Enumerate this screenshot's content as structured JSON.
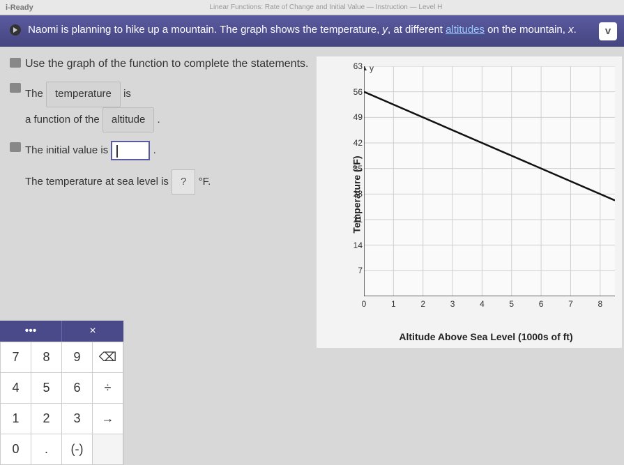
{
  "top": {
    "brand": "i-Ready",
    "crumbs": "Linear Functions: Rate of Change and Initial Value — Instruction — Level H"
  },
  "header": {
    "text_before": "Naomi is planning to hike up a mountain. The graph shows the temperature, ",
    "var_y": "y",
    "text_mid": ", at different ",
    "link": "altitudes",
    "text_after": " on the mountain, ",
    "var_x": "x",
    "period": "."
  },
  "instruction": "Use the graph of the function to complete the statements.",
  "stmt1": {
    "pre": "The ",
    "pill1": "temperature",
    "mid": " is",
    "line2_pre": "a function of the ",
    "pill2": "altitude",
    "line2_post": " ."
  },
  "stmt2": {
    "pre": "The initial value is ",
    "post": "."
  },
  "stmt3": {
    "pre": "The temperature at sea level is ",
    "pill": "?",
    "unit": " °F."
  },
  "keypad": {
    "tab1": "•••",
    "tab2": "×",
    "rows": [
      [
        "7",
        "8",
        "9",
        "⌫"
      ],
      [
        "4",
        "5",
        "6",
        "÷"
      ],
      [
        "1",
        "2",
        "3",
        "→"
      ],
      [
        "0",
        ".",
        "(-)",
        ""
      ]
    ]
  },
  "chart": {
    "type": "line",
    "y_label": "Temperature (°F)",
    "x_label": "Altitude Above Sea Level (1000s of ft)",
    "y_ticks": [
      0,
      7,
      14,
      21,
      28,
      35,
      42,
      49,
      56,
      63
    ],
    "x_ticks": [
      0,
      1,
      2,
      3,
      4,
      5,
      6,
      7,
      8
    ],
    "xlim": [
      0,
      8.5
    ],
    "ylim": [
      0,
      63
    ],
    "grid_color": "#cfcfcf",
    "axis_color": "#333333",
    "bg_color": "#fafafa",
    "panel_bg": "#f3f3f3",
    "line_color": "#111111",
    "line_width": 2.5,
    "line_p1": {
      "x": 0,
      "y": 56
    },
    "line_p2": {
      "x": 8.5,
      "y": 26.25
    },
    "y_var_label": "y",
    "tick_fontsize": 12,
    "label_fontsize": 14
  },
  "colors": {
    "header_bg": "#4a4a8a",
    "header_text": "#ffffff",
    "link": "#99ccff",
    "pill_bg": "#d4d4d4",
    "answer_border": "#5a5aa0",
    "body_bg": "#d8d8d8"
  }
}
